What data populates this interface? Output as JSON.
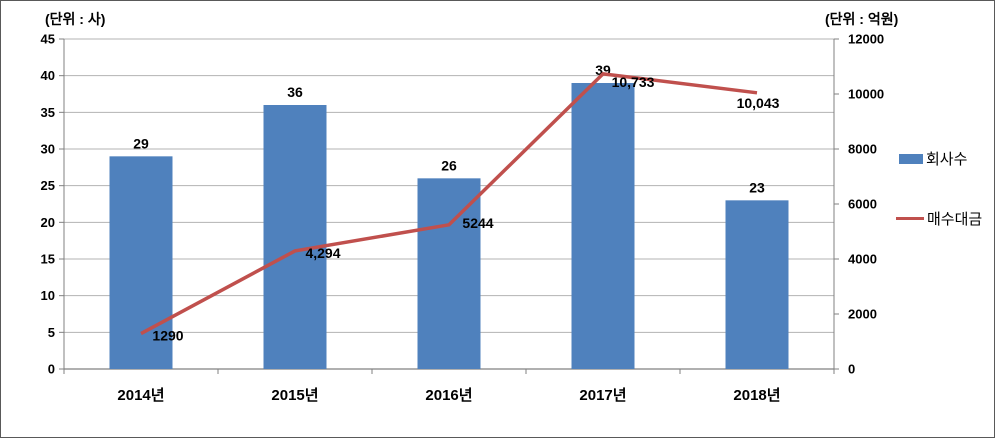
{
  "chart_data": {
    "type": "bar+line combo (dual axis)",
    "categories": [
      "2014년",
      "2015년",
      "2016년",
      "2017년",
      "2018년"
    ],
    "series": [
      {
        "name": "회사수",
        "type": "bar",
        "axis": "left",
        "color": "#4F81BD",
        "values": [
          29,
          36,
          26,
          39,
          23
        ],
        "labels": [
          "29",
          "36",
          "26",
          "39",
          "23"
        ]
      },
      {
        "name": "매수대금",
        "type": "line",
        "axis": "right",
        "color": "#C0504D",
        "values": [
          1290,
          4294,
          5244,
          10733,
          10043
        ],
        "labels": [
          "1290",
          "4,294",
          "5244",
          "10,733",
          "10,043"
        ]
      }
    ],
    "left_axis": {
      "unit_label": "(단위 : 사)",
      "min": 0,
      "max": 45,
      "step": 5
    },
    "right_axis": {
      "unit_label": "(단위 : 억원)",
      "min": 0,
      "max": 12000,
      "step": 2000
    },
    "legend": {
      "position": "right",
      "entries": [
        "회사수",
        "매수대금"
      ]
    },
    "grid": true,
    "colors": {
      "gridline": "#b3b3b3",
      "axis": "#808080",
      "text": "#000000"
    }
  }
}
